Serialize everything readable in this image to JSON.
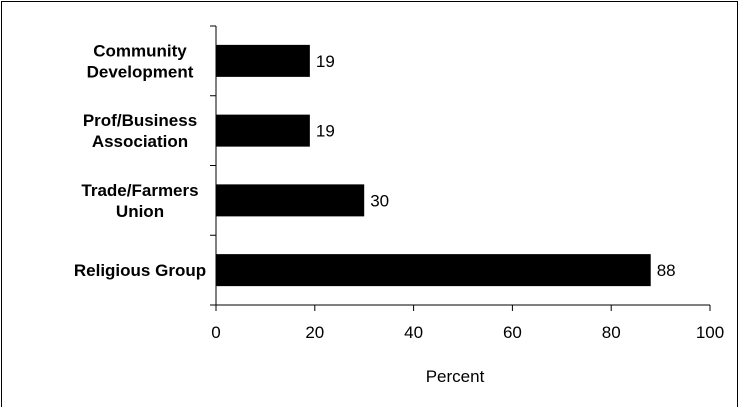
{
  "chart_data": {
    "type": "bar",
    "orientation": "horizontal",
    "categories": [
      [
        "Community",
        "Development"
      ],
      [
        "Prof/Business",
        "Association"
      ],
      [
        "Trade/Farmers",
        "Union"
      ],
      [
        "Religious Group"
      ]
    ],
    "values": [
      19,
      19,
      30,
      88
    ],
    "data_labels": [
      "19",
      "19",
      "30",
      "88"
    ],
    "xlabel": "Percent",
    "ylabel": "",
    "title": "",
    "xlim": [
      0,
      100
    ],
    "xticks": [
      0,
      20,
      40,
      60,
      80,
      100
    ],
    "xtick_labels": [
      "0",
      "20",
      "40",
      "60",
      "80",
      "100"
    ],
    "grid": false,
    "legend": "none",
    "bar_color": "#000000"
  }
}
